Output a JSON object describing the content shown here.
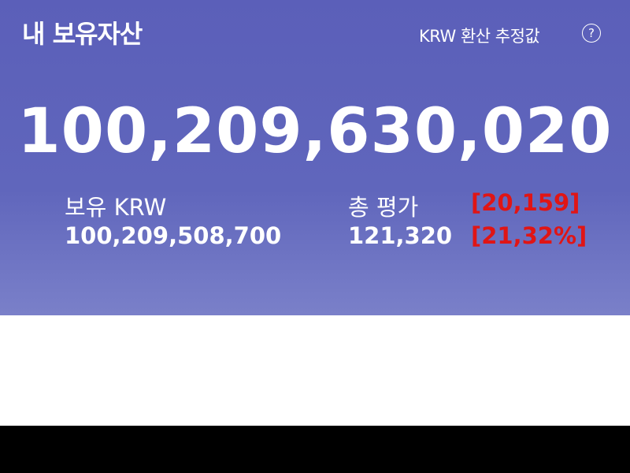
{
  "header": {
    "title": "내 보유자산",
    "conversion_label": "KRW 환산 추정값",
    "help_icon": "question-circle-icon"
  },
  "total_assets": "100,209,630,020",
  "holdings": {
    "label": "보유 KRW",
    "value": "100,209,508,700"
  },
  "evaluation": {
    "label": "총 평가",
    "value": "121,320",
    "profit": "[20,159]",
    "profit_rate": "[21,32%]"
  },
  "colors": {
    "background": "#5b5fb9",
    "profit": "#e01515"
  }
}
